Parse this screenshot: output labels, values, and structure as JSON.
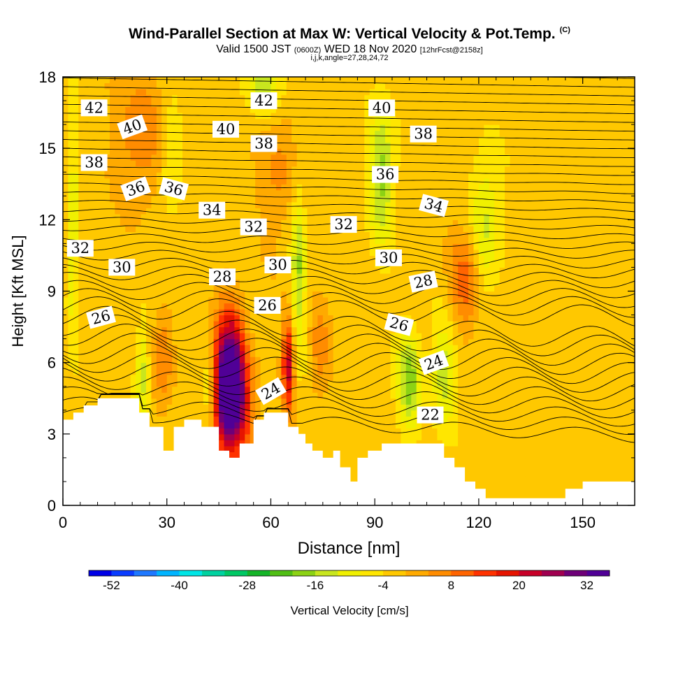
{
  "header": {
    "title": "Wind-Parallel Section at Max W: Vertical Velocity & Pot.Temp.",
    "title_mark": "(C)",
    "valid_prefix": "Valid 1500 JST",
    "valid_utc": "(0600Z)",
    "valid_date": "WED 18 Nov 2020",
    "forecast": "[12hrFcst@2158z]",
    "indices": "i,j,k,angle=27,28,24,72"
  },
  "colorbar": {
    "label": "Vertical Velocity [cm/s]",
    "tick_labels": [
      "-52",
      "-40",
      "-28",
      "-16",
      "-4",
      "8",
      "20",
      "32"
    ],
    "colors": [
      "#0000e6",
      "#0a3cff",
      "#1e78ff",
      "#00b4ff",
      "#00e6e6",
      "#00d2a0",
      "#00c864",
      "#14b428",
      "#50be14",
      "#8cd214",
      "#c8e61e",
      "#f0f000",
      "#ffe600",
      "#ffc800",
      "#ffaa00",
      "#ff8c00",
      "#ff6400",
      "#ff3200",
      "#e61400",
      "#c80028",
      "#a00050",
      "#6e0078",
      "#500096"
    ]
  },
  "chart_data": {
    "type": "heatmap",
    "title": "Wind-Parallel Section at Max W: Vertical Velocity & Pot.Temp.",
    "xlabel": "Distance [nm]",
    "ylabel": "Height [Kft MSL]",
    "xlim": [
      0,
      165
    ],
    "ylim": [
      0,
      18
    ],
    "x_ticks": [
      "0",
      "30",
      "60",
      "90",
      "120",
      "150"
    ],
    "y_ticks": [
      "0",
      "3",
      "6",
      "9",
      "12",
      "15",
      "18"
    ],
    "field": "Vertical Velocity [cm/s]",
    "contour_field": "Potential Temperature (C)",
    "background_value": -2,
    "features": [
      {
        "x": 48,
        "y": 5.6,
        "value": 38,
        "sx": 3,
        "sy": 1.8
      },
      {
        "x": 49,
        "y": 4.0,
        "value": 22,
        "sx": 4,
        "sy": 1.5
      },
      {
        "x": 65,
        "y": 5.9,
        "value": 24,
        "sx": 1.2,
        "sy": 1.4
      },
      {
        "x": 29,
        "y": 6.2,
        "value": 10,
        "sx": 2,
        "sy": 1.5
      },
      {
        "x": 74,
        "y": 6.5,
        "value": 8,
        "sx": 2,
        "sy": 1.5
      },
      {
        "x": 116,
        "y": 9.5,
        "value": 12,
        "sx": 3,
        "sy": 1.5
      },
      {
        "x": 22,
        "y": 15.5,
        "value": 9,
        "sx": 5,
        "sy": 2
      },
      {
        "x": 62,
        "y": 14,
        "value": 7,
        "sx": 4,
        "sy": 2
      },
      {
        "x": 100,
        "y": 5.3,
        "value": -16,
        "sx": 2.5,
        "sy": 1.5
      },
      {
        "x": 110,
        "y": 5.5,
        "value": -12,
        "sx": 2.5,
        "sy": 1.5
      },
      {
        "x": 92,
        "y": 14,
        "value": -16,
        "sx": 2.5,
        "sy": 2
      },
      {
        "x": 68,
        "y": 10,
        "value": -14,
        "sx": 1.5,
        "sy": 2.5
      },
      {
        "x": 122,
        "y": 12,
        "value": -11,
        "sx": 3,
        "sy": 2
      },
      {
        "x": 23,
        "y": 5.6,
        "value": -12,
        "sx": 1.3,
        "sy": 1.5
      },
      {
        "x": 42,
        "y": 4.6,
        "value": -10,
        "sx": 1.5,
        "sy": 1.2
      },
      {
        "x": 58,
        "y": 17.8,
        "value": -12,
        "sx": 4,
        "sy": 1
      },
      {
        "x": 3,
        "y": 12,
        "value": -10,
        "sx": 1,
        "sy": 4
      },
      {
        "x": 31,
        "y": 14.5,
        "value": -8,
        "sx": 2,
        "sy": 1.5
      }
    ],
    "terrain": {
      "x": [
        0,
        3,
        3,
        6,
        6,
        10,
        10,
        22,
        22,
        25,
        25,
        29,
        29,
        32,
        32,
        35,
        35,
        40,
        40,
        45,
        45,
        48,
        48,
        51,
        51,
        55,
        55,
        58,
        58,
        65,
        65,
        68,
        68,
        70,
        70,
        72,
        72,
        75,
        75,
        78,
        78,
        80,
        80,
        83,
        83,
        85,
        85,
        88,
        88,
        92,
        92,
        97,
        97,
        110,
        110,
        113,
        113,
        116,
        116,
        119,
        119,
        122,
        122,
        127,
        127,
        145,
        145,
        150,
        150,
        165
      ],
      "y": [
        3.6,
        3.6,
        3.9,
        3.9,
        4.2,
        4.2,
        4.5,
        4.5,
        3.9,
        3.9,
        3.3,
        3.3,
        2.3,
        2.3,
        3.3,
        3.3,
        3.6,
        3.6,
        3.3,
        3.3,
        2.3,
        2.3,
        2.0,
        2.0,
        2.6,
        2.6,
        3.6,
        3.6,
        3.9,
        3.9,
        3.3,
        3.3,
        3.0,
        3.0,
        2.6,
        2.6,
        2.3,
        2.3,
        2.0,
        2.0,
        2.3,
        2.3,
        1.6,
        1.6,
        1.0,
        1.0,
        2.0,
        2.0,
        2.3,
        2.3,
        2.6,
        2.6,
        2.6,
        2.6,
        2.0,
        2.0,
        1.6,
        1.6,
        1.0,
        1.0,
        0.7,
        0.7,
        0.3,
        0.3,
        0.3,
        0.3,
        0.7,
        0.7,
        1.0,
        1.0
      ]
    },
    "theta_contours": {
      "levels": [
        22,
        24,
        26,
        28,
        30,
        32,
        34,
        36,
        38,
        40,
        42
      ],
      "labels": [
        {
          "text": "22",
          "x": 106,
          "y": 3.8,
          "angle": 0
        },
        {
          "text": "24",
          "x": 60,
          "y": 4.8,
          "angle": -30
        },
        {
          "text": "24",
          "x": 107,
          "y": 6.0,
          "angle": -20
        },
        {
          "text": "26",
          "x": 11,
          "y": 7.9,
          "angle": -15
        },
        {
          "text": "26",
          "x": 59,
          "y": 8.4,
          "angle": 0
        },
        {
          "text": "26",
          "x": 97,
          "y": 7.6,
          "angle": 15
        },
        {
          "text": "28",
          "x": 46,
          "y": 9.6,
          "angle": 0
        },
        {
          "text": "28",
          "x": 104,
          "y": 9.4,
          "angle": -12
        },
        {
          "text": "30",
          "x": 17,
          "y": 10.0,
          "angle": 0
        },
        {
          "text": "30",
          "x": 62,
          "y": 10.1,
          "angle": 0
        },
        {
          "text": "30",
          "x": 94,
          "y": 10.4,
          "angle": 0
        },
        {
          "text": "32",
          "x": 5,
          "y": 10.8,
          "angle": 0
        },
        {
          "text": "32",
          "x": 55,
          "y": 11.7,
          "angle": 0
        },
        {
          "text": "32",
          "x": 81,
          "y": 11.8,
          "angle": 0
        },
        {
          "text": "34",
          "x": 43,
          "y": 12.4,
          "angle": 0
        },
        {
          "text": "34",
          "x": 107,
          "y": 12.6,
          "angle": 15
        },
        {
          "text": "36",
          "x": 21,
          "y": 13.3,
          "angle": -20
        },
        {
          "text": "36",
          "x": 32,
          "y": 13.3,
          "angle": 15
        },
        {
          "text": "36",
          "x": 93,
          "y": 13.9,
          "angle": 0
        },
        {
          "text": "38",
          "x": 9,
          "y": 14.4,
          "angle": 0
        },
        {
          "text": "38",
          "x": 58,
          "y": 15.2,
          "angle": 0
        },
        {
          "text": "38",
          "x": 104,
          "y": 15.6,
          "angle": 0
        },
        {
          "text": "40",
          "x": 20,
          "y": 15.9,
          "angle": -20
        },
        {
          "text": "40",
          "x": 47,
          "y": 15.8,
          "angle": 0
        },
        {
          "text": "40",
          "x": 92,
          "y": 16.7,
          "angle": 0
        },
        {
          "text": "42",
          "x": 9,
          "y": 16.7,
          "angle": 0
        },
        {
          "text": "42",
          "x": 58,
          "y": 17.0,
          "angle": 0
        }
      ]
    }
  }
}
